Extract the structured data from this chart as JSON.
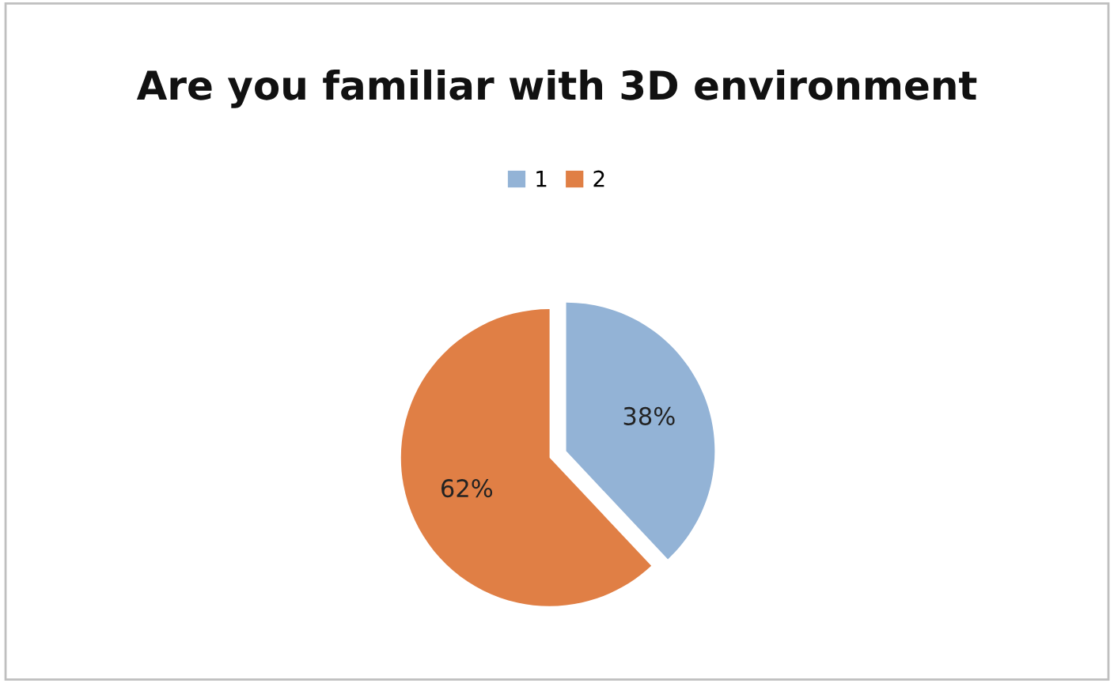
{
  "chart_data": {
    "type": "pie",
    "title": "Are you familiar with 3D environment",
    "categories": [
      "1",
      "2"
    ],
    "values": [
      38,
      62
    ],
    "colors": [
      "#93b3d6",
      "#e07f45"
    ],
    "value_labels": [
      "38%",
      "62%"
    ],
    "legend": "top"
  }
}
